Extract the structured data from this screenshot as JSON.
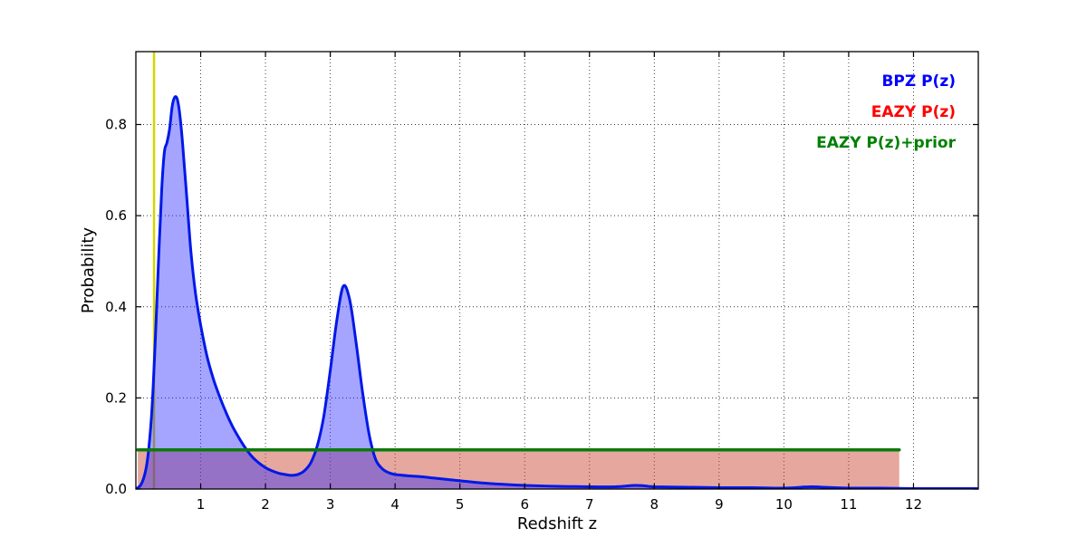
{
  "window": {
    "background": "#ffffff"
  },
  "chart_data": {
    "type": "area",
    "title": "",
    "xlabel": "Redshift z",
    "ylabel": "Probability",
    "xlim": [
      0,
      13.0
    ],
    "ylim": [
      0,
      0.96
    ],
    "xticks": [
      1,
      2,
      3,
      4,
      5,
      6,
      7,
      8,
      9,
      10,
      11,
      12
    ],
    "ytick_vals": [
      0,
      0.2,
      0.4,
      0.6,
      0.8
    ],
    "ytick_labels": [
      "0.0",
      "0.2",
      "0.4",
      "0.6",
      "0.8"
    ],
    "grid": true,
    "grid_style": "dotted",
    "frame_color": "#000000",
    "legend": {
      "position": "upper right",
      "items": [
        {
          "label": "BPZ P(z)",
          "color": "#0000ff",
          "slug": "bpz-pz"
        },
        {
          "label": "EAZY P(z)",
          "color": "#ff0000",
          "slug": "eazy-pz"
        },
        {
          "label": "EAZY P(z)+prior",
          "color": "#008000",
          "slug": "eazy-pz-prior"
        }
      ]
    },
    "vline": {
      "x": 0.28,
      "color": "#d4d400",
      "width": 2.5
    },
    "series": [
      {
        "name": "EAZY P(z)",
        "slug": "eazy-pz",
        "smooth": false,
        "fill": "rgba(200,60,40,0.45)",
        "stroke": "none",
        "width": 0,
        "x": [
          0.03,
          0.03,
          11.78,
          11.78
        ],
        "y": [
          0,
          0.086,
          0.086,
          0
        ]
      },
      {
        "name": "BPZ P(z)",
        "slug": "bpz-pz",
        "smooth": true,
        "fill": "rgba(40,40,255,0.42)",
        "stroke": "#0018e8",
        "width": 3,
        "x": [
          0,
          0.08,
          0.15,
          0.2,
          0.25,
          0.3,
          0.35,
          0.4,
          0.44,
          0.48,
          0.52,
          0.56,
          0.6,
          0.64,
          0.68,
          0.72,
          0.78,
          0.85,
          0.92,
          1,
          1.1,
          1.2,
          1.3,
          1.4,
          1.5,
          1.6,
          1.7,
          1.8,
          1.9,
          2,
          2.1,
          2.2,
          2.3,
          2.4,
          2.5,
          2.6,
          2.7,
          2.8,
          2.9,
          3,
          3.1,
          3.2,
          3.3,
          3.4,
          3.5,
          3.6,
          3.7,
          3.8,
          3.9,
          4,
          4.2,
          4.4,
          4.6,
          4.8,
          5,
          5.3,
          5.6,
          6,
          6.5,
          7,
          7.4,
          7.7,
          7.85,
          8,
          8.5,
          9,
          9.5,
          10,
          10.4,
          10.6,
          11,
          11.5,
          12,
          12.5,
          12.98
        ],
        "y": [
          0,
          0.01,
          0.04,
          0.09,
          0.18,
          0.33,
          0.5,
          0.66,
          0.74,
          0.76,
          0.79,
          0.84,
          0.86,
          0.855,
          0.82,
          0.76,
          0.65,
          0.52,
          0.43,
          0.36,
          0.29,
          0.24,
          0.2,
          0.165,
          0.135,
          0.11,
          0.088,
          0.07,
          0.057,
          0.047,
          0.04,
          0.035,
          0.032,
          0.03,
          0.032,
          0.04,
          0.058,
          0.095,
          0.16,
          0.26,
          0.37,
          0.445,
          0.415,
          0.32,
          0.21,
          0.12,
          0.065,
          0.045,
          0.036,
          0.032,
          0.029,
          0.027,
          0.024,
          0.021,
          0.018,
          0.014,
          0.011,
          0.008,
          0.006,
          0.005,
          0.005,
          0.008,
          0.007,
          0.005,
          0.004,
          0.003,
          0.003,
          0.002,
          0.005,
          0.004,
          0.002,
          0.002,
          0.001,
          0.001,
          0.001
        ]
      },
      {
        "name": "EAZY P(z)+prior",
        "slug": "eazy-pz-prior",
        "smooth": false,
        "fill": null,
        "stroke": "#0b7a0b",
        "width": 3.5,
        "x": [
          0.03,
          11.78
        ],
        "y": [
          0.086,
          0.086
        ]
      }
    ]
  }
}
